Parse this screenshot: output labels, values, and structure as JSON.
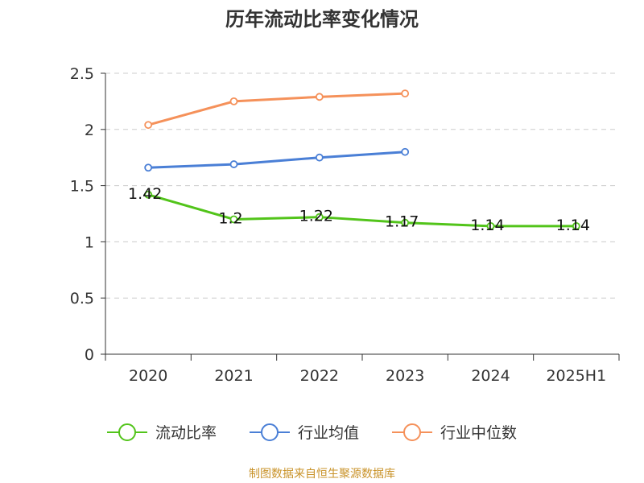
{
  "title": "历年流动比率变化情况",
  "source": "制图数据来自恒生聚源数据库",
  "colors": {
    "series_0": "#52c41a",
    "series_1": "#4a7fd6",
    "series_2": "#f5915a",
    "grid": "#cccccc",
    "axis": "#333333"
  },
  "chart_data": {
    "type": "line",
    "title": "历年流动比率变化情况",
    "xlabel": "",
    "ylabel": "",
    "categories": [
      "2020",
      "2021",
      "2022",
      "2023",
      "2024",
      "2025H1"
    ],
    "ylim": [
      0,
      2.5
    ],
    "yticks": [
      "0",
      "0.5",
      "1",
      "1.5",
      "2",
      "2.5"
    ],
    "grid": true,
    "legend_position": "bottom",
    "series": [
      {
        "name": "流动比率",
        "values": [
          1.42,
          1.2,
          1.22,
          1.17,
          1.14,
          1.14
        ],
        "labels": [
          "1.42",
          "1.2",
          "1.22",
          "1.17",
          "1.14",
          "1.14"
        ]
      },
      {
        "name": "行业均值",
        "values": [
          1.66,
          1.69,
          1.75,
          1.8,
          null,
          null
        ]
      },
      {
        "name": "行业中位数",
        "values": [
          2.04,
          2.25,
          2.29,
          2.32,
          null,
          null
        ]
      }
    ]
  }
}
